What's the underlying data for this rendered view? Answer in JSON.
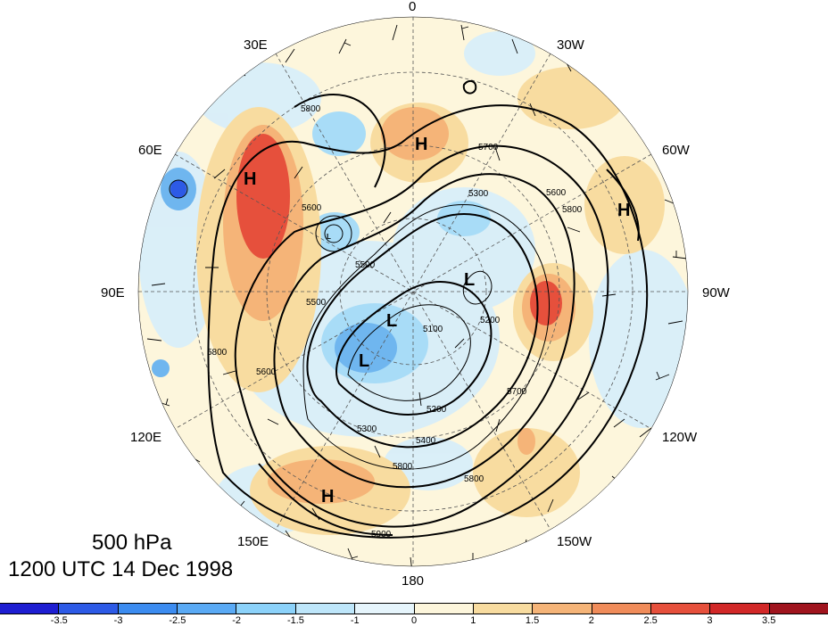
{
  "title": {
    "level": "500 hPa",
    "time": "1200 UTC 14 Dec 1998"
  },
  "longitude_labels": [
    "0",
    "30W",
    "60W",
    "90W",
    "120W",
    "150W",
    "180",
    "150E",
    "120E",
    "90E",
    "60E",
    "30E"
  ],
  "pressure_systems": [
    {
      "type": "H",
      "label": "H"
    },
    {
      "type": "H",
      "label": "H"
    },
    {
      "type": "H",
      "label": "H"
    },
    {
      "type": "H",
      "label": "H"
    },
    {
      "type": "L",
      "label": "L"
    },
    {
      "type": "L",
      "label": "L"
    },
    {
      "type": "L",
      "label": "L"
    },
    {
      "type": "L",
      "label": "L"
    }
  ],
  "contour_labels": [
    "5800",
    "5700",
    "5600",
    "5300",
    "5500",
    "5800",
    "5600",
    "5800",
    "5500",
    "5100",
    "5200",
    "5300",
    "5400",
    "5600",
    "5800",
    "5900",
    "5200",
    "5700",
    "5800"
  ],
  "colorbar": {
    "tick_labels": [
      "-3.5",
      "-3",
      "-2.5",
      "-2",
      "-1.5",
      "-1",
      "0",
      "1",
      "1.5",
      "2",
      "2.5",
      "3",
      "3.5"
    ],
    "colors": [
      "#1e1ed2",
      "#2d5ae6",
      "#3c8cf0",
      "#5aaaf5",
      "#8cd2fa",
      "#bee6fa",
      "#e6f5fc",
      "#fdf6dc",
      "#f8dca0",
      "#f5b478",
      "#f08c5a",
      "#e6503c",
      "#d22828",
      "#a0141e"
    ]
  }
}
